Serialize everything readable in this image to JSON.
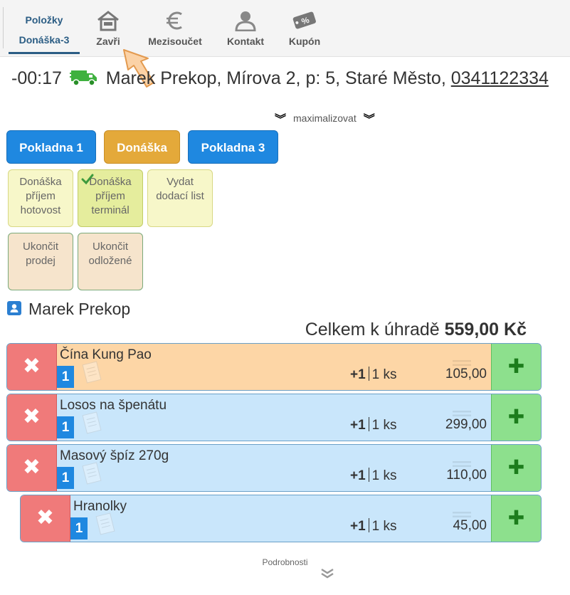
{
  "toolbar": {
    "active_tab": {
      "line1": "Položky",
      "line2": "Donáška-3"
    },
    "buttons": [
      {
        "label": "Zavři",
        "icon": "home-icon"
      },
      {
        "label": "Mezisoučet",
        "icon": "euro-icon"
      },
      {
        "label": "Kontakt",
        "icon": "user-icon"
      },
      {
        "label": "Kupón",
        "icon": "coupon-icon"
      }
    ],
    "coupon_glyph": "%"
  },
  "header": {
    "timer": "-00:17",
    "customer_address": "Marek Prekop, Mírova 2, p: 5, Staré Město,",
    "phone": "0341122334"
  },
  "maximize_label": "maximalizovat",
  "registers": [
    {
      "label": "Pokladna 1",
      "color": "#1f88e0"
    },
    {
      "label": "Donáška",
      "color": "#e4a93a"
    },
    {
      "label": "Pokladna 3",
      "color": "#1f88e0"
    }
  ],
  "tiles": [
    {
      "line1": "Donáška",
      "line2": "příjem",
      "line3": "hotovost"
    },
    {
      "line1": "Donáška",
      "line2": "příjem",
      "line3": "terminál"
    },
    {
      "line1": "Vydat",
      "line2": "dodací list"
    },
    {
      "line1": "Ukončit",
      "line2": "prodej"
    },
    {
      "line1": "Ukončit",
      "line2": "odložené"
    }
  ],
  "customer": {
    "name": "Marek Prekop"
  },
  "total": {
    "label": "Celkem k úhradě",
    "amount": "559,00 Kč"
  },
  "items": [
    {
      "name": "Čína Kung Pao",
      "badge": "1",
      "step": "+1",
      "qty": "1 ks",
      "price": "105,00"
    },
    {
      "name": "Losos na špenátu",
      "badge": "1",
      "step": "+1",
      "qty": "1 ks",
      "price": "299,00"
    },
    {
      "name": "Masový špíz 270g",
      "badge": "1",
      "step": "+1",
      "qty": "1 ks",
      "price": "110,00"
    },
    {
      "name": "Hranolky",
      "badge": "1",
      "step": "+1",
      "qty": "1 ks",
      "price": "45,00"
    }
  ],
  "item_buttons": {
    "delete_glyph": "✖",
    "add_glyph": "✚"
  },
  "details_label": "Podrobnosti",
  "colors": {
    "accent_blue": "#1f88e0",
    "delete_red": "#f07a7a",
    "add_green": "#8de08d",
    "item_orange": "#fdd6a6",
    "item_blue": "#c9e6fb"
  }
}
